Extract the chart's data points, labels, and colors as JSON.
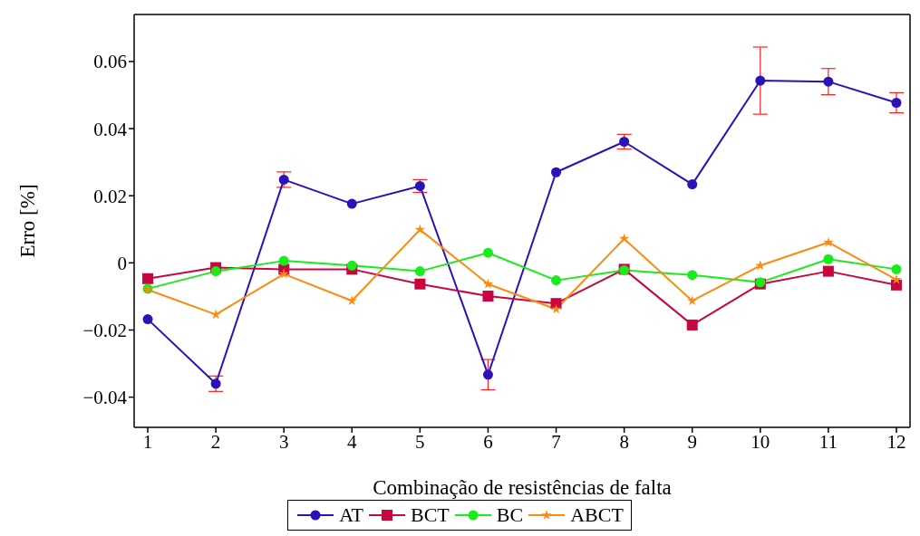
{
  "chart_data": {
    "type": "line",
    "xlabel": "Combinação de resistências de falta",
    "ylabel": "Erro [%]",
    "x": [
      1,
      2,
      3,
      4,
      5,
      6,
      7,
      8,
      9,
      10,
      11,
      12
    ],
    "series": [
      {
        "name": "AT",
        "color": "#2b11b8",
        "marker": "circle",
        "values": [
          -0.0168,
          -0.036,
          0.0248,
          0.0176,
          0.0229,
          -0.0333,
          0.027,
          0.0361,
          0.0234,
          0.0543,
          0.054,
          0.0477
        ],
        "errors": [
          null,
          0.0023,
          0.0023,
          null,
          0.0019,
          0.0045,
          null,
          0.0022,
          null,
          0.01,
          0.0039,
          0.003
        ]
      },
      {
        "name": "BCT",
        "color": "#c8063f",
        "marker": "square",
        "values": [
          -0.0047,
          -0.0014,
          -0.0019,
          -0.0019,
          -0.0063,
          -0.0099,
          -0.0121,
          -0.0019,
          -0.0185,
          -0.0063,
          -0.0025,
          -0.0066
        ]
      },
      {
        "name": "BC",
        "color": "#1aeb1a",
        "marker": "circle",
        "values": [
          -0.0077,
          -0.0025,
          0.0006,
          -0.0008,
          -0.0025,
          0.003,
          -0.0052,
          -0.0022,
          -0.0036,
          -0.0058,
          0.0011,
          -0.0019
        ]
      },
      {
        "name": "ABCT",
        "color": "#fd8a0e",
        "marker": "star",
        "values": [
          -0.008,
          -0.0154,
          -0.0033,
          -0.0113,
          0.0099,
          -0.0063,
          -0.0138,
          0.0072,
          -0.0113,
          -0.0008,
          0.0061,
          -0.005
        ]
      }
    ],
    "xlim": [
      0.8,
      12.2
    ],
    "xticks": [
      1,
      2,
      3,
      4,
      5,
      6,
      7,
      8,
      9,
      10,
      11,
      12
    ],
    "ylim": [
      -0.049,
      0.074
    ],
    "yticks": [
      {
        "value": -0.04,
        "label": "−0.04"
      },
      {
        "value": -0.02,
        "label": "−0.02"
      },
      0,
      0.02,
      0.04,
      0.06
    ],
    "grid": false,
    "legend": "bottom",
    "line_style": "solid"
  }
}
